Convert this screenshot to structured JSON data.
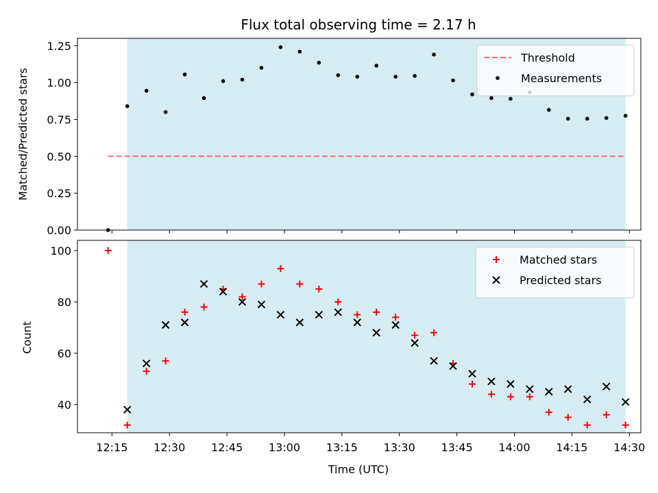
{
  "chart_data": [
    {
      "type": "scatter",
      "title": "Flux total observing time = 2.17 h",
      "ylabel": "Matched/Predicted stars",
      "xlabel": "",
      "xlim": [
        "12:06",
        "14:33"
      ],
      "ylim": [
        0,
        1.3
      ],
      "yticks": [
        0.0,
        0.25,
        0.5,
        0.75,
        1.0,
        1.25
      ],
      "ytick_labels": [
        "0.00",
        "0.25",
        "0.50",
        "0.75",
        "1.00",
        "1.25"
      ],
      "shaded_span": [
        "12:19",
        "14:29"
      ],
      "threshold": {
        "name": "Threshold",
        "value": 0.5,
        "x_range": [
          "12:14",
          "14:29"
        ],
        "color": "#ff6b6b"
      },
      "legend_placement": "top-right",
      "series": [
        {
          "name": "Measurements",
          "color": "#000000",
          "marker": "dot",
          "x": [
            "12:14",
            "12:19",
            "12:24",
            "12:29",
            "12:34",
            "12:39",
            "12:44",
            "12:49",
            "12:54",
            "12:59",
            "13:04",
            "13:09",
            "13:14",
            "13:19",
            "13:24",
            "13:29",
            "13:34",
            "13:39",
            "13:44",
            "13:49",
            "13:54",
            "13:59",
            "14:04",
            "14:09",
            "14:14",
            "14:19",
            "14:24",
            "14:29"
          ],
          "values": [
            0.0,
            0.84,
            0.945,
            0.8,
            1.055,
            0.895,
            1.01,
            1.02,
            1.1,
            1.24,
            1.21,
            1.135,
            1.05,
            1.04,
            1.115,
            1.04,
            1.045,
            1.19,
            1.015,
            0.92,
            0.895,
            0.89,
            0.935,
            0.815,
            0.755,
            0.755,
            0.76,
            0.775
          ]
        }
      ]
    },
    {
      "type": "scatter",
      "title": "",
      "ylabel": "Count",
      "xlabel": "Time (UTC)",
      "xlim": [
        "12:06",
        "14:33"
      ],
      "ylim": [
        29,
        104
      ],
      "yticks": [
        40,
        60,
        80,
        100
      ],
      "ytick_labels": [
        "40",
        "60",
        "80",
        "100"
      ],
      "xticks": [
        "12:15",
        "12:30",
        "12:45",
        "13:00",
        "13:15",
        "13:30",
        "13:45",
        "14:00",
        "14:15",
        "14:30"
      ],
      "shaded_span": [
        "12:19",
        "14:29"
      ],
      "legend_placement": "top-right",
      "series": [
        {
          "name": "Matched stars",
          "color": "#ff0000",
          "marker": "plus",
          "x": [
            "12:14",
            "12:19",
            "12:24",
            "12:29",
            "12:34",
            "12:39",
            "12:44",
            "12:49",
            "12:54",
            "12:59",
            "13:04",
            "13:09",
            "13:14",
            "13:19",
            "13:24",
            "13:29",
            "13:34",
            "13:39",
            "13:44",
            "13:49",
            "13:54",
            "13:59",
            "14:04",
            "14:09",
            "14:14",
            "14:19",
            "14:24",
            "14:29"
          ],
          "values": [
            100,
            32,
            53,
            57,
            76,
            78,
            85,
            82,
            87,
            93,
            87,
            85,
            80,
            75,
            76,
            74,
            67,
            68,
            56,
            48,
            44,
            43,
            43,
            37,
            35,
            32,
            36,
            32
          ]
        },
        {
          "name": "Predicted stars",
          "color": "#000000",
          "marker": "x",
          "x": [
            "12:19",
            "12:24",
            "12:29",
            "12:34",
            "12:39",
            "12:44",
            "12:49",
            "12:54",
            "12:59",
            "13:04",
            "13:09",
            "13:14",
            "13:19",
            "13:24",
            "13:29",
            "13:34",
            "13:39",
            "13:44",
            "13:49",
            "13:54",
            "13:59",
            "14:04",
            "14:09",
            "14:14",
            "14:19",
            "14:24",
            "14:29"
          ],
          "values": [
            38,
            56,
            71,
            72,
            87,
            84,
            80,
            79,
            75,
            72,
            75,
            76,
            72,
            68,
            71,
            64,
            57,
            55,
            52,
            49,
            48,
            46,
            45,
            46,
            42,
            47,
            41
          ]
        }
      ]
    }
  ]
}
